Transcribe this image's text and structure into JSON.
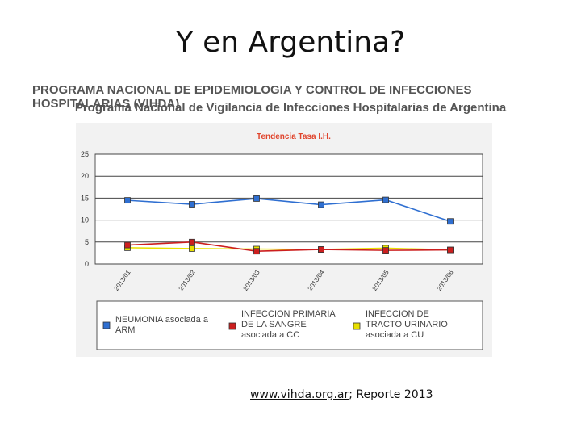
{
  "slide": {
    "title": "Y en Argentina?",
    "program_line1": "PROGRAMA NACIONAL DE EPIDEMIOLOGIA Y CONTROL DE INFECCIONES HOSPITALARIAS  (VIHDA)",
    "program_line2": "Programa Nacional de Vigilancia de Infecciones Hospitalarias de Argentina",
    "footer_link": "www.vihda.org.ar",
    "footer_text": "; Reporte 2013"
  },
  "colors": {
    "blue": "#2f6fd1",
    "red": "#cc1f1f",
    "yellow": "#e8e000",
    "title_red": "#e0442c"
  },
  "chart_data": {
    "type": "line",
    "title": "Tendencia Tasa I.H.",
    "xlabel": "",
    "ylabel": "",
    "categories": [
      "2013/01",
      "2013/02",
      "2013/03",
      "2013/04",
      "2013/05",
      "2013/06"
    ],
    "ylim": [
      0,
      25
    ],
    "yticks": [
      "0",
      "5",
      "10",
      "15",
      "20",
      "25"
    ],
    "grid": true,
    "legend_position": "bottom",
    "series": [
      {
        "name": "NEUMONIA asociada a ARM",
        "color": "#2f6fd1",
        "values": [
          14.5,
          13.6,
          14.9,
          13.5,
          14.6,
          9.7
        ]
      },
      {
        "name": "INFECCION PRIMARIA DE LA SANGRE asociada a CC",
        "color": "#cc1f1f",
        "values": [
          4.3,
          5.0,
          2.9,
          3.3,
          3.1,
          3.2
        ]
      },
      {
        "name": "INFECCION DE TRACTO URINARIO asociada a CU",
        "color": "#e8e000",
        "values": [
          3.7,
          3.5,
          3.4,
          3.3,
          3.6,
          3.2
        ]
      }
    ]
  }
}
